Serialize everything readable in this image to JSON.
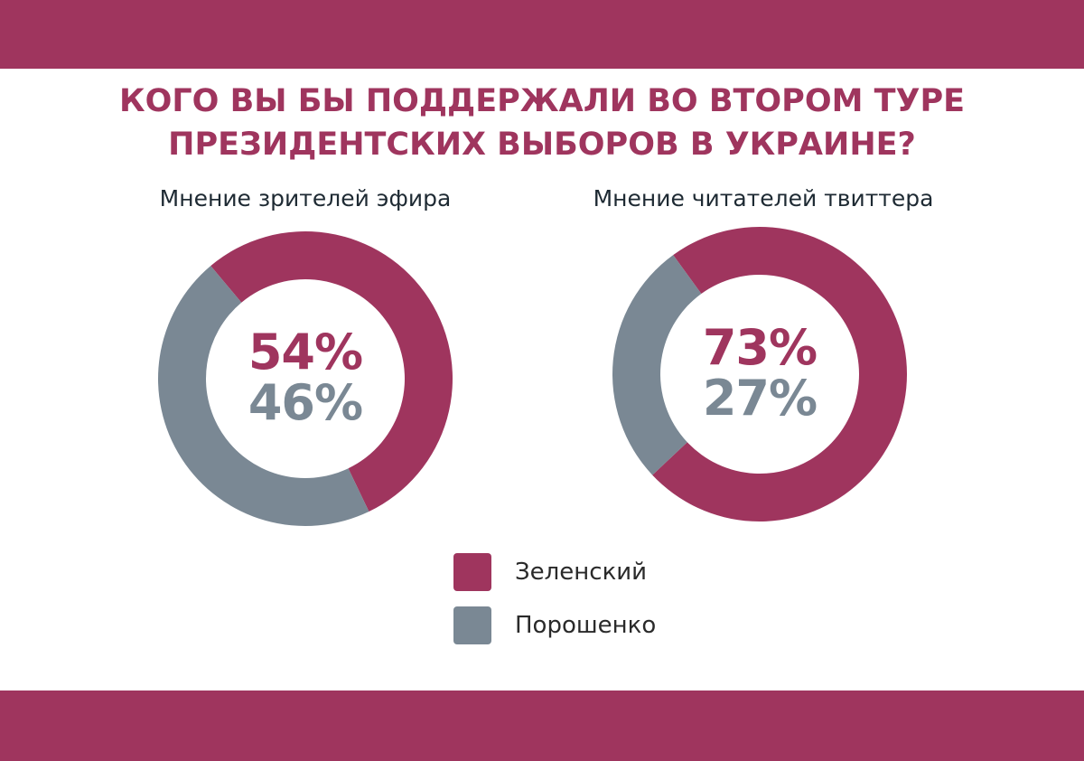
{
  "colors": {
    "accent": "#9f355e",
    "secondary": "#7a8894",
    "text_dark": "#1e2a33"
  },
  "title_lines": [
    "КОГО ВЫ БЫ ПОДДЕРЖАЛИ ВО ВТОРОМ ТУРЕ",
    "ПРЕЗИДЕНТСКИХ ВЫБОРОВ В УКРАИНЕ?"
  ],
  "chart_data": [
    {
      "type": "pie",
      "style": "donut",
      "title": "Мнение зрителей эфира",
      "series": [
        {
          "name": "Зеленский",
          "value": 54,
          "label": "54%"
        },
        {
          "name": "Порошенко",
          "value": 46,
          "label": "46%"
        }
      ]
    },
    {
      "type": "pie",
      "style": "donut",
      "title": "Мнение читателей твиттера",
      "series": [
        {
          "name": "Зеленский",
          "value": 73,
          "label": "73%"
        },
        {
          "name": "Порошенко",
          "value": 27,
          "label": "27%"
        }
      ]
    }
  ],
  "legend": {
    "position": "bottom-center",
    "items": [
      {
        "name": "Зеленский"
      },
      {
        "name": "Порошенко"
      }
    ]
  }
}
